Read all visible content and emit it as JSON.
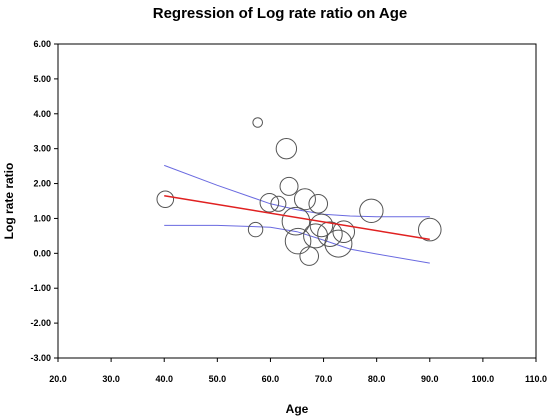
{
  "chart_data": {
    "type": "scatter",
    "title": "Regression of Log rate ratio on Age",
    "xlabel": "Age",
    "ylabel": "Log rate ratio",
    "xlim": [
      20,
      110
    ],
    "ylim": [
      -3,
      6
    ],
    "x_ticks": [
      "20.0",
      "30.0",
      "40.0",
      "50.0",
      "60.0",
      "70.0",
      "80.0",
      "90.0",
      "100.0",
      "110.0"
    ],
    "y_ticks": [
      "6.00",
      "5.00",
      "4.00",
      "3.00",
      "2.00",
      "1.00",
      "0.00",
      "-1.00",
      "-2.00",
      "-3.00"
    ],
    "grid": false,
    "points": [
      {
        "x": 40.2,
        "y": 1.55,
        "w": 0.35
      },
      {
        "x": 57.6,
        "y": 3.75,
        "w": 0.12
      },
      {
        "x": 57.2,
        "y": 0.68,
        "w": 0.28
      },
      {
        "x": 59.8,
        "y": 1.45,
        "w": 0.42
      },
      {
        "x": 61.5,
        "y": 1.42,
        "w": 0.3
      },
      {
        "x": 63.0,
        "y": 3.0,
        "w": 0.48
      },
      {
        "x": 63.5,
        "y": 1.92,
        "w": 0.4
      },
      {
        "x": 64.8,
        "y": 0.92,
        "w": 0.72
      },
      {
        "x": 65.2,
        "y": 0.35,
        "w": 0.65
      },
      {
        "x": 66.5,
        "y": 1.55,
        "w": 0.5
      },
      {
        "x": 67.3,
        "y": -0.08,
        "w": 0.42
      },
      {
        "x": 68.5,
        "y": 0.5,
        "w": 0.6
      },
      {
        "x": 69.0,
        "y": 1.42,
        "w": 0.42
      },
      {
        "x": 69.6,
        "y": 0.8,
        "w": 0.55
      },
      {
        "x": 71.2,
        "y": 0.55,
        "w": 0.62
      },
      {
        "x": 72.8,
        "y": 0.28,
        "w": 0.7
      },
      {
        "x": 73.8,
        "y": 0.62,
        "w": 0.52
      },
      {
        "x": 79.0,
        "y": 1.22,
        "w": 0.58
      },
      {
        "x": 90.0,
        "y": 0.68,
        "w": 0.55
      }
    ],
    "regression_line": {
      "x": [
        40,
        90
      ],
      "y": [
        1.65,
        0.4
      ],
      "color": "#e02020"
    },
    "ci_upper": {
      "x": [
        40,
        50,
        60,
        65,
        70,
        75,
        80,
        90
      ],
      "y": [
        2.52,
        1.95,
        1.42,
        1.25,
        1.12,
        1.07,
        1.05,
        1.05
      ],
      "color": "#6a6ae0"
    },
    "ci_lower": {
      "x": [
        40,
        50,
        60,
        65,
        70,
        75,
        80,
        90
      ],
      "y": [
        0.8,
        0.8,
        0.75,
        0.62,
        0.38,
        0.12,
        -0.02,
        -0.28
      ],
      "color": "#6a6ae0"
    }
  }
}
